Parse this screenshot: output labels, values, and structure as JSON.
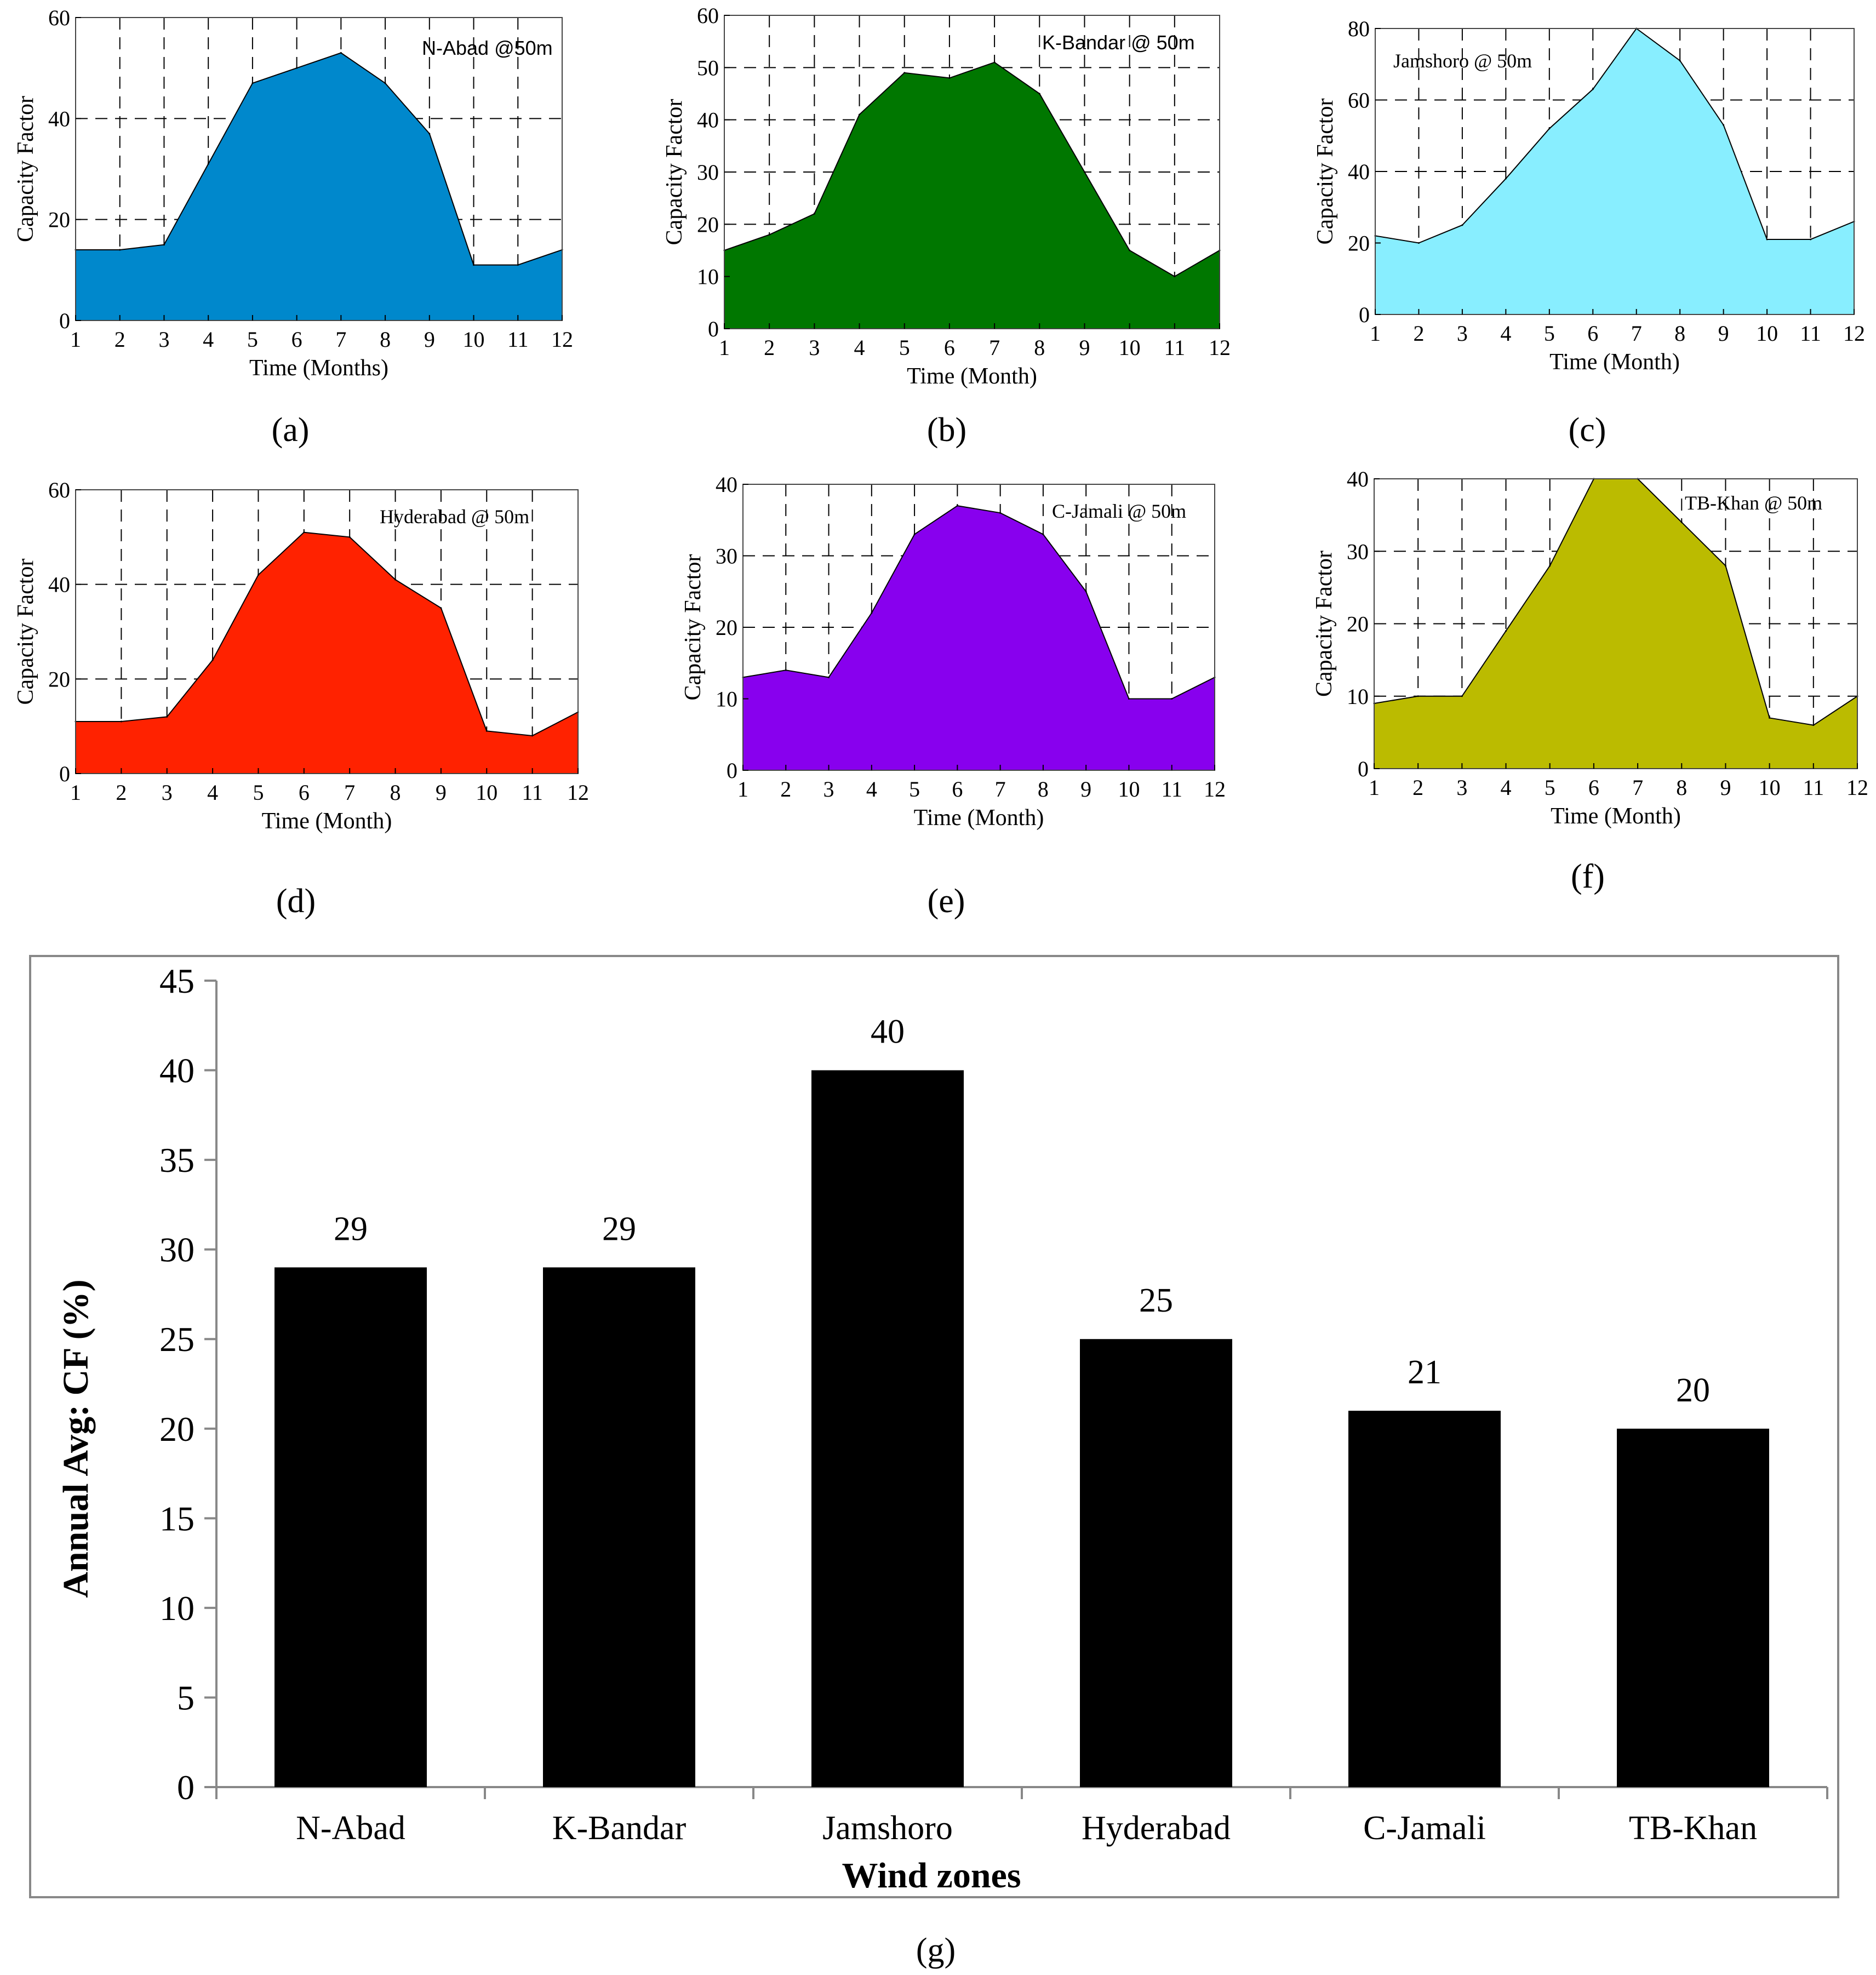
{
  "chart_data": [
    {
      "panel": "(a)",
      "type": "area",
      "annotation": "N-Abad @50m",
      "xlabel": "Time (Months)",
      "ylabel": "Capacity Factor",
      "x": [
        1,
        2,
        3,
        4,
        5,
        6,
        7,
        8,
        9,
        10,
        11,
        12
      ],
      "values": [
        14,
        14,
        15,
        31,
        47,
        50,
        53,
        47,
        37,
        11,
        11,
        14
      ],
      "xlim": [
        1,
        12
      ],
      "ylim": [
        0,
        60
      ],
      "yticks": [
        0,
        20,
        40,
        60
      ],
      "grid": true,
      "color": "#0088CC"
    },
    {
      "panel": "(b)",
      "type": "area",
      "annotation": "K-Bandar @ 50m",
      "xlabel": "Time (Month)",
      "ylabel": "Capacity Factor",
      "x": [
        1,
        2,
        3,
        4,
        5,
        6,
        7,
        8,
        9,
        10,
        11,
        12
      ],
      "values": [
        15,
        18,
        22,
        41,
        49,
        48,
        51,
        45,
        30,
        15,
        10,
        15
      ],
      "xlim": [
        1,
        12
      ],
      "ylim": [
        0,
        60
      ],
      "yticks": [
        0,
        10,
        20,
        30,
        40,
        50,
        60
      ],
      "grid": true,
      "color": "#007700"
    },
    {
      "panel": "(c)",
      "type": "area",
      "annotation": "Jamshoro @ 50m",
      "xlabel": "Time (Month)",
      "ylabel": "Capacity Factor",
      "x": [
        1,
        2,
        3,
        4,
        5,
        6,
        7,
        8,
        9,
        10,
        11,
        12
      ],
      "values": [
        22,
        20,
        25,
        38,
        52,
        63,
        80,
        71,
        53,
        21,
        21,
        26
      ],
      "xlim": [
        1,
        12
      ],
      "ylim": [
        0,
        80
      ],
      "yticks": [
        0,
        20,
        40,
        60,
        80
      ],
      "grid": true,
      "color": "#88EEFF"
    },
    {
      "panel": "(d)",
      "type": "area",
      "annotation": "Hyderabad @ 50m",
      "xlabel": "Time (Month)",
      "ylabel": "Capacity Factor",
      "x": [
        1,
        2,
        3,
        4,
        5,
        6,
        7,
        8,
        9,
        10,
        11,
        12
      ],
      "values": [
        11,
        11,
        12,
        24,
        42,
        51,
        50,
        41,
        35,
        9,
        8,
        13
      ],
      "xlim": [
        1,
        12
      ],
      "ylim": [
        0,
        60
      ],
      "yticks": [
        0,
        20,
        40,
        60
      ],
      "grid": true,
      "color": "#FF2200"
    },
    {
      "panel": "(e)",
      "type": "area",
      "annotation": "C-Jamali @ 50m",
      "xlabel": "Time (Month)",
      "ylabel": "Capacity Factor",
      "x": [
        1,
        2,
        3,
        4,
        5,
        6,
        7,
        8,
        9,
        10,
        11,
        12
      ],
      "values": [
        13,
        14,
        13,
        22,
        33,
        37,
        36,
        33,
        25,
        10,
        10,
        13
      ],
      "xlim": [
        1,
        12
      ],
      "ylim": [
        0,
        40
      ],
      "yticks": [
        0,
        10,
        20,
        30,
        40
      ],
      "grid": true,
      "color": "#8800EE"
    },
    {
      "panel": "(f)",
      "type": "area",
      "annotation": "TB-Khan @ 50m",
      "xlabel": "Time (Month)",
      "ylabel": "Capacity Factor",
      "x": [
        1,
        2,
        3,
        4,
        5,
        6,
        7,
        8,
        9,
        10,
        11,
        12
      ],
      "values": [
        9,
        10,
        10,
        19,
        28,
        40,
        40,
        34,
        28,
        7,
        6,
        10
      ],
      "xlim": [
        1,
        12
      ],
      "ylim": [
        0,
        40
      ],
      "yticks": [
        0,
        10,
        20,
        30,
        40
      ],
      "grid": true,
      "color": "#BBBB00"
    },
    {
      "panel": "(g)",
      "type": "bar",
      "xlabel": "Wind zones",
      "ylabel": "Annual Avg: CF (%)",
      "categories": [
        "N-Abad",
        "K-Bandar",
        "Jamshoro",
        "Hyderabad",
        "C-Jamali",
        "TB-Khan"
      ],
      "values": [
        29,
        29,
        40,
        25,
        21,
        20
      ],
      "ylim": [
        0,
        45
      ],
      "yticks": [
        0,
        5,
        10,
        15,
        20,
        25,
        30,
        35,
        40,
        45
      ],
      "grid": false,
      "color": "#000000"
    }
  ]
}
